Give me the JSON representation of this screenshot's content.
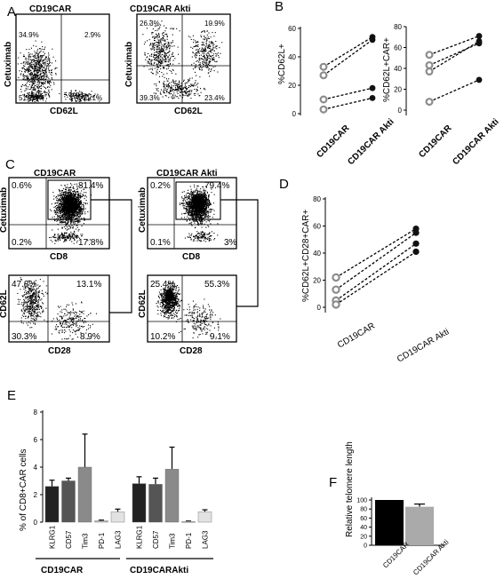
{
  "panel_labels": [
    "A",
    "B",
    "C",
    "D",
    "E",
    "F"
  ],
  "panelA": {
    "plots": [
      {
        "title": "CD19CAR",
        "ylabel": "Cetuximab",
        "xlabel": "CD62L",
        "quadrants": {
          "ul": "34.9%",
          "ur": "2.9%",
          "ll": "51.2",
          "lr": "11.1%"
        }
      },
      {
        "title": "CD19CAR Akti",
        "ylabel": "Cetuximab",
        "xlabel": "CD62L",
        "quadrants": {
          "ul": "26.3%",
          "ur": "10.9%",
          "ll": "39.3%",
          "lr": "23.4%"
        }
      }
    ]
  },
  "panelC": {
    "titles": [
      "CD19CAR",
      "CD19CAR Akti"
    ],
    "top_plots": [
      {
        "ylabel": "Cetuximab",
        "xlabel": "CD8",
        "quadrants": {
          "ul": "0.6%",
          "ur": "81.4%",
          "ll": "0.2%",
          "lr": "17.8%"
        }
      },
      {
        "ylabel": "Cetuximab",
        "xlabel": "CD8",
        "quadrants": {
          "ul": "0.2%",
          "ur": "79.4%",
          "ll": "0.1%",
          "lr": "3%"
        }
      }
    ],
    "bottom_plots": [
      {
        "ylabel": "CD62L",
        "xlabel": "CD28",
        "quadrants": {
          "ul": "47.8%",
          "ur": "13.1%",
          "ll": "30.3%",
          "lr": "8.9%"
        }
      },
      {
        "ylabel": "CD62L",
        "xlabel": "CD28",
        "quadrants": {
          "ul": "25.4%",
          "ur": "55.3%",
          "ll": "10.2%",
          "lr": "9.1%"
        }
      }
    ]
  },
  "chart_data": [
    {
      "panel": "B-left",
      "type": "scatter",
      "categories": [
        "CD19CAR",
        "CD19CAR Akti"
      ],
      "ylabel": "%CD62L+",
      "ylim": [
        0,
        60
      ],
      "yticks": [
        0,
        20,
        40,
        60
      ],
      "pairs": [
        [
          33,
          54
        ],
        [
          27,
          52
        ],
        [
          10,
          18
        ],
        [
          3,
          11
        ]
      ],
      "colors": {
        "before": "#8c8c8c",
        "after": "#111111"
      }
    },
    {
      "panel": "B-right",
      "type": "scatter",
      "categories": [
        "CD19CAR",
        "CD19CAR Akti"
      ],
      "ylabel": "%CD62L+CAR+",
      "ylim": [
        0,
        80
      ],
      "yticks": [
        0,
        20,
        40,
        60,
        80
      ],
      "pairs": [
        [
          53,
          71
        ],
        [
          43,
          64
        ],
        [
          37,
          66
        ],
        [
          8,
          29
        ]
      ],
      "colors": {
        "before": "#8c8c8c",
        "after": "#111111"
      }
    },
    {
      "panel": "D",
      "type": "scatter",
      "categories": [
        "CD19CAR",
        "CD19CAR Akti"
      ],
      "ylabel": "%CD62L+CD28+CAR+",
      "ylim": [
        0,
        80
      ],
      "yticks": [
        0,
        20,
        40,
        60,
        80
      ],
      "pairs": [
        [
          22,
          58
        ],
        [
          13,
          55
        ],
        [
          5,
          47
        ],
        [
          2,
          41
        ]
      ],
      "colors": {
        "before": "#8c8c8c",
        "after": "#111111"
      }
    },
    {
      "panel": "E",
      "type": "bar",
      "ylabel": "% of CD8+CAR cells",
      "ylim": [
        0,
        8
      ],
      "yticks": [
        0,
        2,
        4,
        6,
        8
      ],
      "groups": [
        {
          "name": "CD19CAR",
          "categories": [
            "KLRG1",
            "CD57",
            "Tim3",
            "PD-1",
            "LAG3"
          ],
          "values": [
            2.6,
            3.0,
            4.0,
            0.1,
            0.75
          ],
          "errors": [
            0.45,
            0.2,
            2.4,
            0.05,
            0.2
          ]
        },
        {
          "name": "CD19CARAkti",
          "categories": [
            "KLRG1",
            "CD57",
            "Tim3",
            "PD-1",
            "LAG3"
          ],
          "values": [
            2.8,
            2.75,
            3.85,
            0.05,
            0.75
          ],
          "errors": [
            0.5,
            0.45,
            1.6,
            0.03,
            0.15
          ]
        }
      ],
      "bar_colors": [
        "#222222",
        "#555555",
        "#8a8a8a",
        "#c0c0c0",
        "#e2e2e2"
      ]
    },
    {
      "panel": "F",
      "type": "bar",
      "categories": [
        "CD19CAR",
        "CD19CAR Akti"
      ],
      "values": [
        100,
        85
      ],
      "errors": [
        0,
        6
      ],
      "ylabel": "Relative telomere length",
      "ylim": [
        0,
        100
      ],
      "yticks": [
        0,
        20,
        40,
        60,
        80,
        100
      ],
      "bar_colors": [
        "#000000",
        "#aaaaaa"
      ]
    }
  ]
}
